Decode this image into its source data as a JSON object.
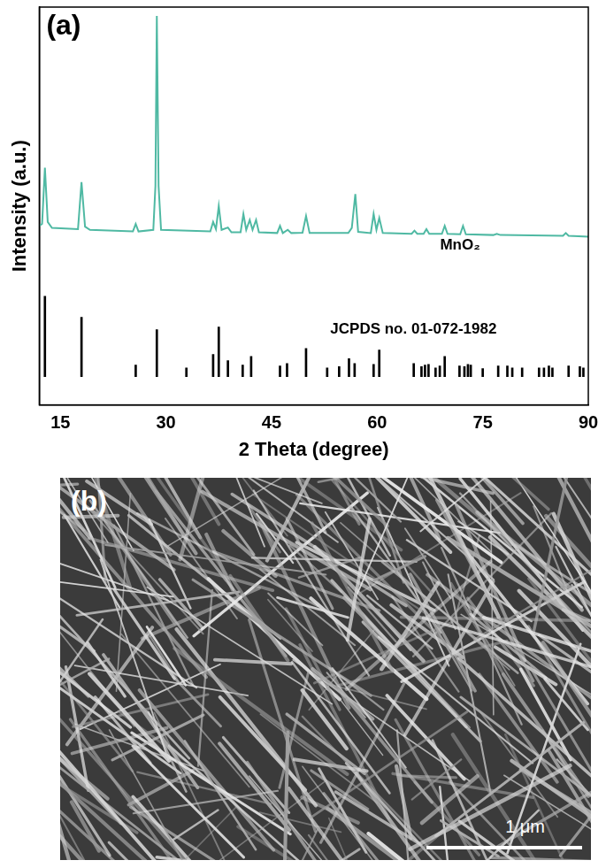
{
  "chart_data": {
    "type": "line",
    "panel_label": "(a)",
    "x_label": "2 Theta (degree)",
    "y_label": "Intensity (a.u.)",
    "xlim": [
      12,
      90
    ],
    "xticks": [
      15,
      30,
      45,
      60,
      75,
      90
    ],
    "ylim": [
      0,
      100
    ],
    "yticks": [],
    "tick_labels": "x",
    "grid": false,
    "series": [
      {
        "name": "MnO₂",
        "type": "line",
        "color": "#4fb9a3",
        "x": [
          12,
          12.4,
          12.8,
          13.2,
          13.8,
          17.5,
          18.0,
          18.5,
          19.2,
          25.3,
          25.7,
          26.1,
          28.2,
          28.5,
          28.7,
          28.95,
          29.3,
          36.3,
          36.7,
          37.1,
          37.5,
          37.9,
          38.8,
          39.3,
          40.6,
          41.0,
          41.4,
          41.9,
          42.3,
          42.8,
          43.2,
          45.8,
          46.2,
          46.6,
          47.3,
          47.8,
          49.4,
          49.9,
          50.4,
          55.9,
          56.4,
          56.9,
          57.3,
          59.1,
          59.5,
          59.9,
          60.3,
          60.8,
          64.9,
          65.3,
          65.7,
          66.6,
          67.0,
          67.4,
          69.2,
          69.6,
          70.0,
          71.8,
          72.2,
          72.6,
          76.5,
          77.0,
          77.5,
          86.4,
          86.8,
          87.2,
          90
        ],
        "values": [
          45.0,
          45.5,
          59.6,
          46.0,
          44.5,
          44.2,
          56.0,
          44.8,
          44.0,
          43.6,
          45.5,
          43.6,
          44.0,
          55.0,
          97.8,
          55.0,
          44.0,
          43.6,
          46.0,
          44.2,
          50.0,
          44.0,
          44.6,
          43.4,
          43.4,
          48.0,
          44.0,
          46.5,
          44.0,
          46.5,
          43.4,
          43.2,
          45.0,
          43.2,
          44.0,
          43.2,
          43.3,
          47.5,
          43.2,
          43.2,
          44.5,
          53.0,
          43.5,
          43.2,
          48.0,
          44.0,
          47.0,
          43.2,
          43.0,
          43.8,
          43.0,
          43.0,
          44.2,
          43.0,
          43.0,
          45.0,
          43.0,
          42.9,
          45.0,
          42.9,
          42.7,
          43.0,
          42.7,
          42.5,
          43.2,
          42.5,
          42.3
        ]
      },
      {
        "name": "JCPDS no. 01-072-1982",
        "type": "bar",
        "color": "#000000",
        "base": 7.1,
        "x": [
          12.8,
          18.0,
          25.7,
          28.7,
          32.9,
          36.7,
          37.5,
          38.8,
          40.9,
          42.1,
          46.2,
          47.2,
          49.9,
          52.9,
          54.6,
          56.0,
          56.8,
          59.5,
          60.3,
          65.2,
          66.3,
          66.8,
          67.3,
          68.3,
          68.9,
          69.6,
          71.7,
          72.4,
          72.9,
          73.3,
          75.0,
          77.2,
          78.5,
          79.2,
          80.6,
          83.0,
          83.7,
          84.4,
          84.9,
          87.2,
          88.8,
          89.3
        ],
        "values": [
          27.3,
          22.0,
          10.0,
          18.9,
          9.3,
          12.7,
          19.6,
          11.1,
          10.0,
          12.2,
          9.8,
          10.4,
          14.2,
          9.3,
          9.6,
          11.6,
          10.4,
          10.2,
          13.8,
          10.4,
          9.6,
          10.0,
          10.2,
          9.3,
          9.8,
          12.2,
          9.8,
          9.6,
          10.2,
          10.0,
          9.1,
          9.8,
          9.8,
          9.3,
          9.3,
          9.3,
          9.3,
          9.8,
          9.3,
          9.8,
          9.6,
          9.3
        ]
      }
    ]
  },
  "image_panel": {
    "label": "(b)",
    "scale_bar_label": "1 μm"
  }
}
